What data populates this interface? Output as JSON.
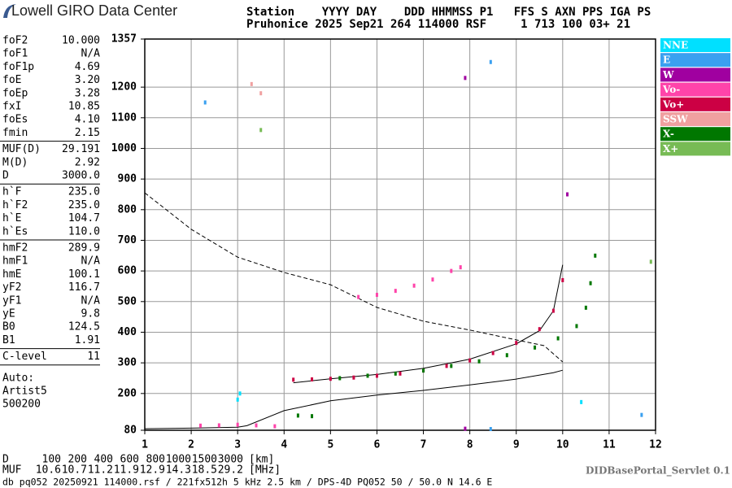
{
  "header": {
    "logo": "Lowell GIRO Data Center",
    "line1": "Station    YYYY DAY    DDD HHMMSS P1   FFS S AXN PPS IGA PS",
    "line2": "Pruhonice 2025 Sep21 264 114000 RSF     1 713 100 03+ 21"
  },
  "panel": {
    "groups": [
      [
        [
          "foF2",
          "10.000"
        ],
        [
          "foF1",
          "N/A"
        ],
        [
          "foF1p",
          "4.69"
        ],
        [
          "foE",
          "3.20"
        ],
        [
          "foEp",
          "3.28"
        ],
        [
          "fxI",
          "10.85"
        ],
        [
          "foEs",
          "4.10"
        ],
        [
          "fmin",
          "2.15"
        ]
      ],
      [
        [
          "MUF(D)",
          "29.191"
        ],
        [
          "M(D)",
          "2.92"
        ],
        [
          "D",
          "3000.0"
        ]
      ],
      [
        [
          "h`F",
          "235.0"
        ],
        [
          "h`F2",
          "235.0"
        ],
        [
          "h`E",
          "104.7"
        ],
        [
          "h`Es",
          "110.0"
        ]
      ],
      [
        [
          "hmF2",
          "289.9"
        ],
        [
          "hmF1",
          "N/A"
        ],
        [
          "hmE",
          "100.1"
        ],
        [
          "yF2",
          "116.7"
        ],
        [
          "yF1",
          "N/A"
        ],
        [
          "yE",
          "9.8"
        ],
        [
          "B0",
          "124.5"
        ],
        [
          "B1",
          "1.91"
        ]
      ],
      [
        [
          "C-level",
          "11"
        ]
      ]
    ],
    "auto": [
      "Auto:",
      "Artist5",
      "500200"
    ]
  },
  "chart_data": {
    "type": "scatter",
    "xlim": [
      1,
      12
    ],
    "xticks": [
      1,
      2,
      3,
      4,
      5,
      6,
      7,
      8,
      9,
      10,
      11,
      12
    ],
    "ylim": [
      80,
      1357
    ],
    "yticks": [
      80,
      200,
      300,
      400,
      500,
      600,
      700,
      800,
      900,
      1000,
      1100,
      1200,
      1357
    ],
    "grid": true,
    "legend": "right",
    "series": [
      {
        "name": "NNE",
        "color": "#00e0ff",
        "x": [
          3.0,
          3.05,
          10.4
        ],
        "y": [
          180,
          200,
          172
        ]
      },
      {
        "name": "E",
        "color": "#3aa0f0",
        "x": [
          2.3,
          8.45,
          11.7,
          8.45
        ],
        "y": [
          1150,
          1282,
          130,
          84
        ]
      },
      {
        "name": "W",
        "color": "#a000a0",
        "x": [
          7.9,
          10.1,
          7.9
        ],
        "y": [
          1230,
          850,
          85
        ]
      },
      {
        "name": "Vo-",
        "color": "#ff44aa",
        "x": [
          2.2,
          2.6,
          3.0,
          3.4,
          3.8,
          5.6,
          6.0,
          6.4,
          6.8,
          7.2,
          7.6,
          7.8
        ],
        "y": [
          95,
          96,
          98,
          96,
          93,
          515,
          522,
          535,
          552,
          572,
          600,
          612
        ]
      },
      {
        "name": "Vo+",
        "color": "#cc0044",
        "x": [
          4.2,
          4.6,
          5.0,
          5.5,
          6.0,
          6.5,
          7.0,
          7.5,
          8.0,
          8.5,
          9.0,
          9.5,
          9.8,
          10.0
        ],
        "y": [
          245,
          246,
          248,
          252,
          258,
          265,
          275,
          290,
          308,
          332,
          365,
          410,
          470,
          570
        ]
      },
      {
        "name": "SSW",
        "color": "#f0a0a0",
        "x": [
          3.5,
          3.3
        ],
        "y": [
          1180,
          1210
        ]
      },
      {
        "name": "X-",
        "color": "#007700",
        "x": [
          4.3,
          4.6,
          5.2,
          5.8,
          6.4,
          7.0,
          7.6,
          8.2,
          8.8,
          9.4,
          9.9,
          10.3,
          10.5,
          10.6,
          10.7
        ],
        "y": [
          128,
          126,
          250,
          258,
          265,
          275,
          290,
          305,
          325,
          350,
          380,
          420,
          480,
          560,
          650
        ]
      },
      {
        "name": "X+",
        "color": "#77bb55",
        "x": [
          3.5,
          11.9
        ],
        "y": [
          1060,
          630
        ]
      }
    ],
    "lines": [
      {
        "style": "dashed",
        "x": [
          1,
          2,
          3,
          4,
          5,
          6,
          7,
          8,
          9,
          9.6,
          10
        ],
        "y": [
          855,
          736,
          645,
          595,
          555,
          481,
          436,
          407,
          375,
          356,
          303
        ]
      },
      {
        "style": "solid",
        "x": [
          1,
          2,
          3,
          3.2,
          4,
          5,
          6,
          7,
          8,
          9,
          9.8,
          10
        ],
        "y": [
          85,
          87,
          90,
          95,
          144,
          176,
          195,
          210,
          228,
          247,
          268,
          276
        ]
      },
      {
        "style": "solid",
        "x": [
          4.2,
          5,
          6,
          7,
          8,
          9,
          9.5,
          9.8,
          10
        ],
        "y": [
          235,
          248,
          262,
          282,
          312,
          362,
          405,
          470,
          620
        ]
      }
    ]
  },
  "table": {
    "d_label": "D",
    "d_values": [
      100,
      200,
      400,
      600,
      800,
      1000,
      1500,
      3000
    ],
    "d_unit": "[km]",
    "muf_label": "MUF",
    "muf_values": [
      10.6,
      10.7,
      11.2,
      11.9,
      12.9,
      14.3,
      18.5,
      29.2
    ],
    "muf_unit": "[MHz]"
  },
  "footer": {
    "info": "db pq052 20250921 114000.rsf / 221fx512h 5 kHz 2.5 km / DPS-4D PQ052 50 / 50.0 N 14.6 E",
    "servlet": "DIDBasePortal_Servlet 0.1"
  }
}
